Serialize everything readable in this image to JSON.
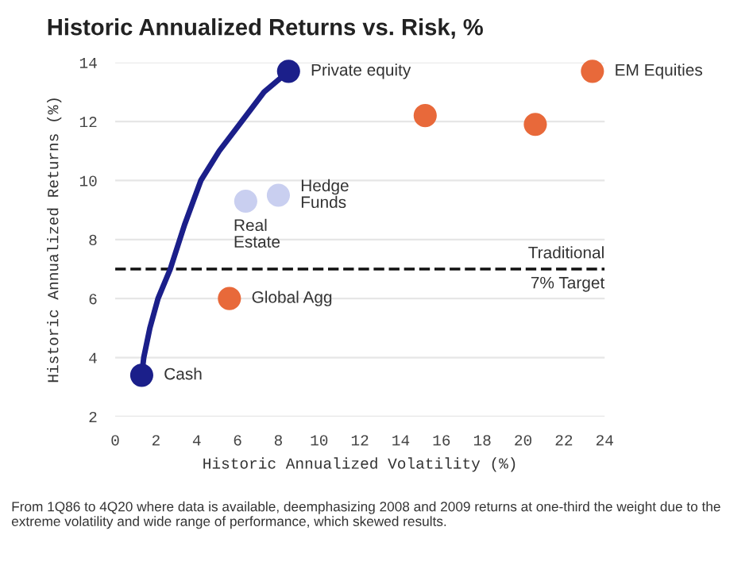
{
  "chart_data": {
    "type": "scatter",
    "title": "Historic Annualized Returns vs. Risk, %",
    "xlabel": "Historic Annualized Volatility (%)",
    "ylabel": "Historic Annualized Returns (%)",
    "series": [
      {
        "type": "line",
        "color": "#1b1f8a",
        "marker": "none",
        "x": [
          1.3,
          1.4,
          1.7,
          2.1,
          2.7,
          3.4,
          4.2,
          5.1,
          6.2,
          7.3,
          8.5
        ],
        "values": [
          3.4,
          4,
          5,
          6,
          7,
          8.5,
          10,
          11,
          12,
          13,
          13.7
        ]
      },
      {
        "color": "#1b1f8a",
        "x": [
          1.3,
          8.5
        ],
        "values": [
          3.4,
          13.7
        ]
      },
      {
        "color": "#c9cff0",
        "x": [
          6.4,
          8.0
        ],
        "values": [
          9.3,
          9.5
        ]
      },
      {
        "color": "#e8693a",
        "x": [
          5.6,
          23.4,
          15.2,
          20.6
        ],
        "values": [
          6.0,
          13.7,
          12.2,
          11.9
        ]
      }
    ],
    "annotations": [
      {
        "text": "Cash",
        "x": 1.3,
        "y": 3.4
      },
      {
        "text": "Private equity",
        "x": 8.5,
        "y": 13.7
      },
      {
        "text": "Real\nEstate",
        "x": 6.4,
        "y": 9.3
      },
      {
        "text": "Hedge\nFunds",
        "x": 8.0,
        "y": 9.5
      },
      {
        "text": "Global Agg",
        "x": 5.6,
        "y": 6.0
      },
      {
        "text": "EM Equities",
        "x": 23.4,
        "y": 13.7
      },
      {
        "text": "7% Target",
        "x": 24,
        "y": 7
      },
      "From 1Q86 to 4Q20 where data is available, deemphasizing 2008 and 2009 returns at one-third the weight due to the extreme volatility and wide range of performance, which skewed results."
    ],
    "ref_lines": [
      {
        "axis": "y",
        "value": 7,
        "label": "Traditional",
        "color": "#111111",
        "line_style": "dashed"
      }
    ],
    "xlim": [
      0,
      24
    ],
    "ylim": [
      2,
      14
    ],
    "xticks": [
      0,
      2,
      4,
      6,
      8,
      10,
      12,
      14,
      16,
      18,
      20,
      22,
      24
    ],
    "yticks": [
      2,
      4,
      6,
      8,
      10,
      12,
      14
    ],
    "grid": "y",
    "legend": false,
    "marker": "circle"
  }
}
